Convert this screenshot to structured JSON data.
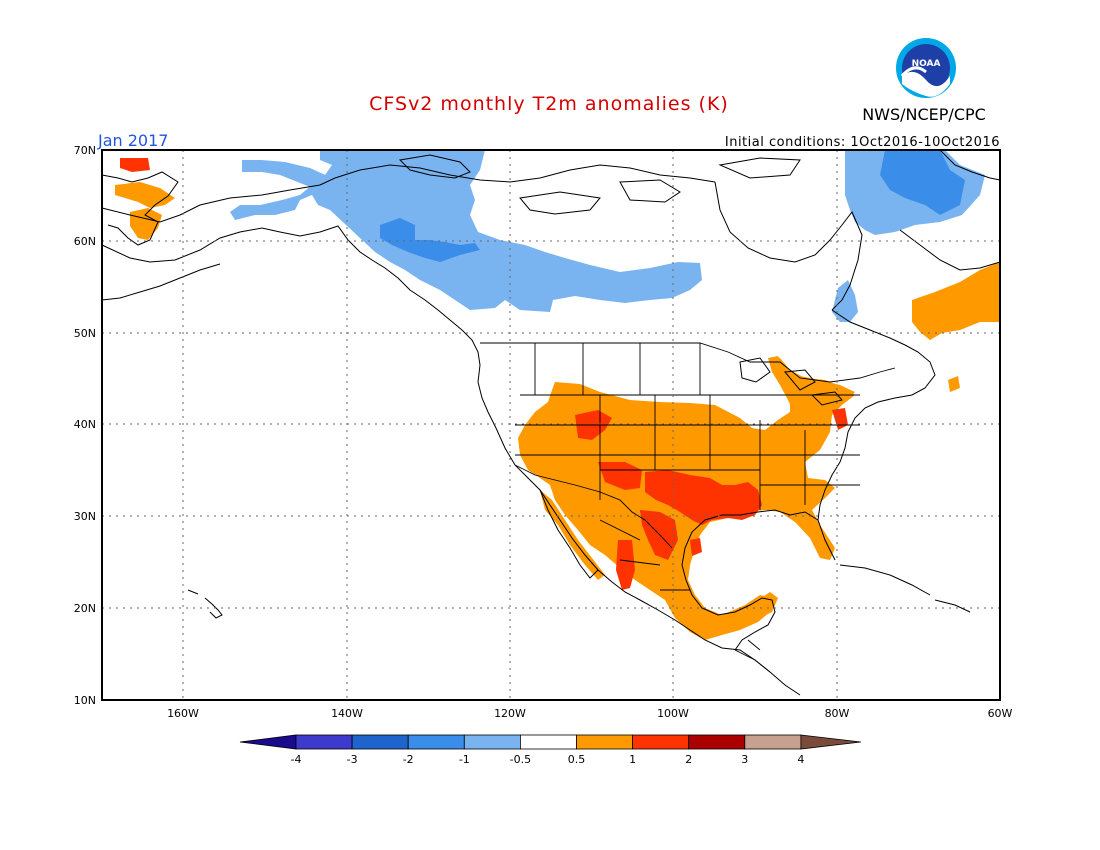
{
  "header": {
    "title": "CFSv2 monthly T2m anomalies (K)",
    "month": "Jan 2017",
    "initial_conditions": "Initial conditions: 1Oct2016-10Oct2016",
    "org": "NWS/NCEP/CPC",
    "logo_text": "NOAA"
  },
  "axes": {
    "lat_labels": [
      "70N",
      "60N",
      "50N",
      "40N",
      "30N",
      "20N",
      "10N"
    ],
    "lon_labels": [
      "160W",
      "140W",
      "120W",
      "100W",
      "80W",
      "60W"
    ]
  },
  "colorbar": {
    "labels": [
      "-4",
      "-3",
      "-2",
      "-1",
      "-0.5",
      "0.5",
      "1",
      "2",
      "3",
      "4"
    ],
    "colors": [
      "#1a0a8c",
      "#3d3acd",
      "#1f63cc",
      "#3a8de8",
      "#7ab4f0",
      "#ffffff",
      "#ff9900",
      "#ff3300",
      "#aa0000",
      "#c8a090",
      "#7a4a3a"
    ]
  },
  "map": {
    "lon_range": [
      -170,
      -60
    ],
    "lat_range": [
      10,
      70
    ],
    "regions": [
      {
        "name": "canada-cold-anomaly",
        "anomaly": "-1 to -0.5",
        "color": "#7ab4f0"
      },
      {
        "name": "bc-yukon-stronger-cold",
        "anomaly": "-2 to -1",
        "color": "#3a8de8"
      },
      {
        "name": "baffin-cold-anomaly",
        "anomaly": "-2 to -1",
        "color": "#3a8de8"
      },
      {
        "name": "us-mexico-warm-anomaly",
        "anomaly": "0.5 to 1",
        "color": "#ff9900"
      },
      {
        "name": "southern-us-strong-warm",
        "anomaly": "1 to 2",
        "color": "#ff3300"
      },
      {
        "name": "quebec-labrador-warm",
        "anomaly": "0.5 to 1",
        "color": "#ff9900"
      },
      {
        "name": "siberia-chukotka-warm",
        "anomaly": "0.5 to 1",
        "color": "#ff9900"
      }
    ]
  }
}
